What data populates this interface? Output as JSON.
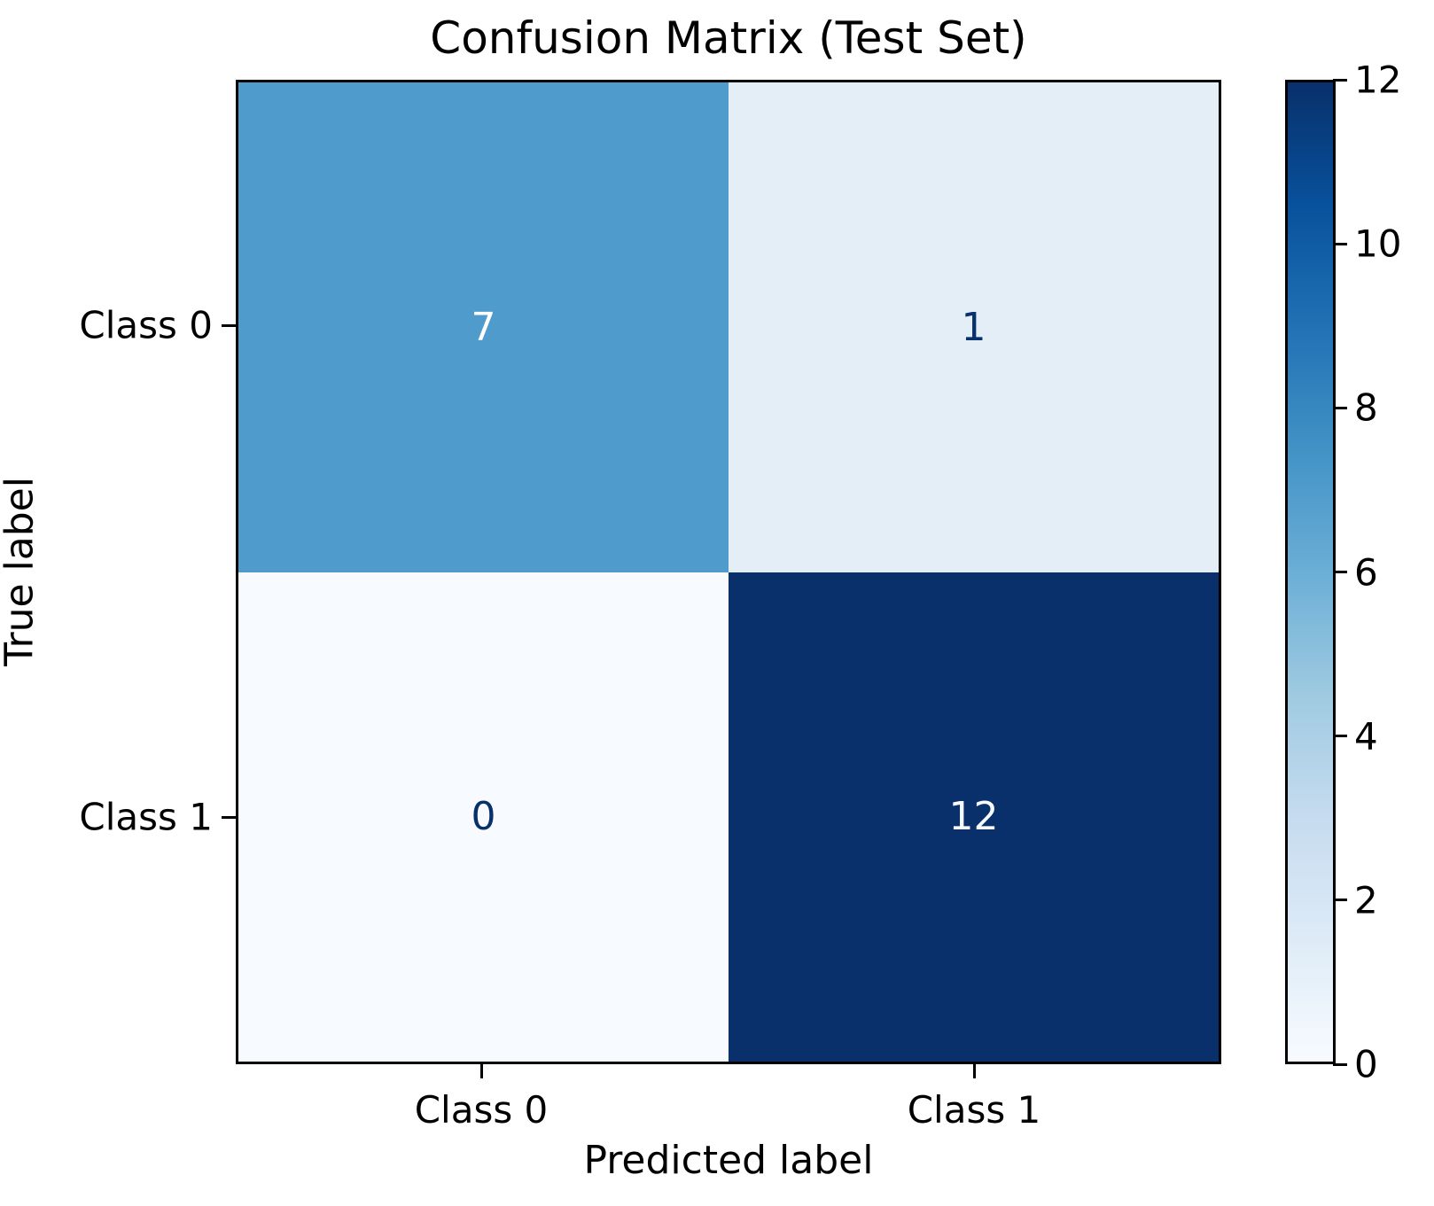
{
  "title": "Confusion Matrix (Test Set)",
  "chart_data": {
    "type": "heatmap",
    "title": "Confusion Matrix (Test Set)",
    "xlabel": "Predicted label",
    "ylabel": "True label",
    "x_ticklabels": [
      "Class 0",
      "Class 1"
    ],
    "y_ticklabels": [
      "Class 0",
      "Class 1"
    ],
    "matrix": [
      [
        7,
        1
      ],
      [
        0,
        12
      ]
    ],
    "vmin": 0,
    "vmax": 12,
    "colormap": "Blues",
    "colormap_stops": [
      "#f7fbff",
      "#deebf7",
      "#c6dbef",
      "#9ecae1",
      "#6baed6",
      "#4292c6",
      "#2171b5",
      "#08519c",
      "#08306b"
    ],
    "cell_colors": [
      [
        "#4f9bcc",
        "#e4eef7"
      ],
      [
        "#f7fafe",
        "#09306b"
      ]
    ],
    "cell_text_colors": [
      [
        "#ffffff",
        "#08306b"
      ],
      [
        "#08306b",
        "#f7fbff"
      ]
    ],
    "colorbar": {
      "ticks": [
        "0",
        "2",
        "4",
        "6",
        "8",
        "10",
        "12"
      ],
      "tick_values": [
        0,
        2,
        4,
        6,
        8,
        10,
        12
      ]
    },
    "grid": false,
    "legend": false
  }
}
